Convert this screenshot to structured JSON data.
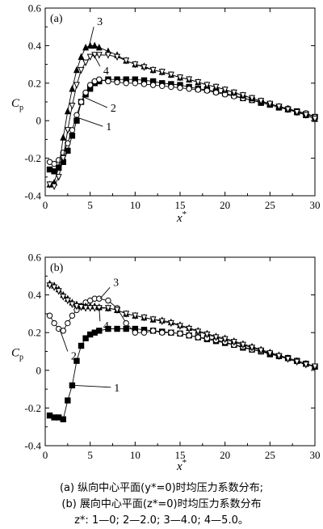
{
  "chart_data": [
    {
      "type": "line",
      "panel_label": "(a)",
      "ylabel_main": "C",
      "ylabel_sub": "p",
      "xlabel_main": "x",
      "xlabel_sup": "*",
      "xlim": [
        0,
        30
      ],
      "ylim": [
        -0.4,
        0.6
      ],
      "xticks": [
        0,
        5,
        10,
        15,
        20,
        25,
        30
      ],
      "yticks": [
        -0.4,
        -0.2,
        0,
        0.2,
        0.4,
        0.6
      ],
      "xtick_labels": [
        "0",
        "5",
        "10",
        "15",
        "20",
        "25",
        "30"
      ],
      "ytick_labels": [
        "-0.4",
        "-0.2",
        "0",
        "0.2",
        "0.4",
        "0.6"
      ],
      "series": [
        {
          "name": "1",
          "marker": "filled-square",
          "x": [
            0.5,
            1.0,
            1.5,
            2.0,
            2.5,
            3.0,
            3.5,
            4.0,
            4.5,
            5.0,
            5.5,
            6.0,
            7,
            8,
            9,
            10,
            11,
            12,
            13,
            14,
            15,
            16,
            17,
            18,
            19,
            20,
            21,
            22,
            23,
            24,
            25,
            26,
            27,
            28,
            29,
            30
          ],
          "y": [
            -0.26,
            -0.27,
            -0.25,
            -0.22,
            -0.16,
            -0.08,
            0.0,
            0.1,
            0.14,
            0.17,
            0.2,
            0.21,
            0.22,
            0.22,
            0.22,
            0.22,
            0.215,
            0.21,
            0.2,
            0.195,
            0.19,
            0.18,
            0.17,
            0.165,
            0.155,
            0.145,
            0.135,
            0.12,
            0.11,
            0.095,
            0.085,
            0.07,
            0.06,
            0.05,
            0.035,
            0.02
          ]
        },
        {
          "name": "2",
          "marker": "open-circle",
          "x": [
            0.5,
            1.0,
            1.5,
            2.0,
            2.5,
            3.0,
            3.5,
            4.0,
            4.5,
            5.0,
            5.5,
            6.0,
            7,
            8,
            9,
            10,
            11,
            12,
            13,
            14,
            15,
            16,
            17,
            18,
            19,
            20,
            21,
            22,
            23,
            24,
            25,
            26,
            27,
            28,
            29,
            30
          ],
          "y": [
            -0.22,
            -0.23,
            -0.21,
            -0.17,
            -0.12,
            -0.05,
            0.03,
            0.1,
            0.15,
            0.19,
            0.21,
            0.22,
            0.21,
            0.205,
            0.2,
            0.2,
            0.195,
            0.19,
            0.185,
            0.18,
            0.175,
            0.17,
            0.165,
            0.16,
            0.15,
            0.14,
            0.13,
            0.12,
            0.11,
            0.1,
            0.09,
            0.075,
            0.065,
            0.05,
            0.04,
            0.02
          ]
        },
        {
          "name": "3",
          "marker": "filled-triangle",
          "x": [
            0.5,
            1.0,
            1.5,
            2.0,
            2.5,
            3.0,
            3.5,
            4.0,
            4.5,
            5.0,
            5.5,
            6.0,
            7,
            8,
            9,
            10,
            11,
            12,
            13,
            14,
            15,
            16,
            17,
            18,
            19,
            20,
            21,
            22,
            23,
            24,
            25,
            26,
            27,
            28,
            29,
            30
          ],
          "y": [
            -0.34,
            -0.33,
            -0.25,
            -0.09,
            0.05,
            0.17,
            0.27,
            0.34,
            0.39,
            0.4,
            0.4,
            0.39,
            0.37,
            0.35,
            0.32,
            0.3,
            0.29,
            0.27,
            0.26,
            0.245,
            0.23,
            0.22,
            0.205,
            0.19,
            0.18,
            0.165,
            0.15,
            0.135,
            0.12,
            0.105,
            0.09,
            0.075,
            0.06,
            0.045,
            0.03,
            0.01
          ]
        },
        {
          "name": "4",
          "marker": "open-inverted-triangle",
          "x": [
            0.5,
            1.0,
            1.5,
            2.0,
            2.5,
            3.0,
            3.5,
            4.0,
            4.5,
            5.0,
            5.5,
            6.0,
            7,
            8,
            9,
            10,
            11,
            12,
            13,
            14,
            15,
            16,
            17,
            18,
            19,
            20,
            21,
            22,
            23,
            24,
            25,
            26,
            27,
            28,
            29,
            30
          ],
          "y": [
            -0.34,
            -0.35,
            -0.3,
            -0.2,
            -0.05,
            0.08,
            0.19,
            0.27,
            0.31,
            0.34,
            0.35,
            0.35,
            0.35,
            0.34,
            0.32,
            0.3,
            0.285,
            0.27,
            0.26,
            0.245,
            0.23,
            0.22,
            0.205,
            0.19,
            0.18,
            0.165,
            0.15,
            0.135,
            0.12,
            0.105,
            0.09,
            0.075,
            0.06,
            0.045,
            0.03,
            0.01
          ]
        }
      ],
      "annotations": [
        {
          "label": "1",
          "at_x": 3.4,
          "at_y": 0.02,
          "to_x": 6.4,
          "to_y": -0.03
        },
        {
          "label": "2",
          "at_x": 4.1,
          "at_y": 0.13,
          "to_x": 6.9,
          "to_y": 0.07
        },
        {
          "label": "3",
          "at_x": 4.9,
          "at_y": 0.4,
          "to_x": 5.4,
          "to_y": 0.5
        },
        {
          "label": "4",
          "at_x": 5.4,
          "at_y": 0.35,
          "to_x": 6.1,
          "to_y": 0.29
        }
      ]
    },
    {
      "type": "line",
      "panel_label": "(b)",
      "ylabel_main": "C",
      "ylabel_sub": "p",
      "xlabel_main": "x",
      "xlabel_sup": "*",
      "xlim": [
        0,
        30
      ],
      "ylim": [
        -0.4,
        0.6
      ],
      "xticks": [
        0,
        5,
        10,
        15,
        20,
        25,
        30
      ],
      "yticks": [
        -0.4,
        -0.2,
        0,
        0.2,
        0.4,
        0.6
      ],
      "xtick_labels": [
        "0",
        "5",
        "10",
        "15",
        "20",
        "25",
        "30"
      ],
      "ytick_labels": [
        "-0.4",
        "-0.2",
        "0",
        "0.2",
        "0.4",
        "0.6"
      ],
      "series": [
        {
          "name": "1",
          "marker": "filled-square",
          "x": [
            0.5,
            1.0,
            1.5,
            2.0,
            2.5,
            3.0,
            3.5,
            4.0,
            4.5,
            5.0,
            5.5,
            6.0,
            7,
            8,
            9,
            10,
            11,
            12,
            13,
            14,
            15,
            16,
            17,
            18,
            19,
            20,
            21,
            22,
            23,
            24,
            25,
            26,
            27,
            28,
            29,
            30
          ],
          "y": [
            -0.24,
            -0.25,
            -0.25,
            -0.26,
            -0.16,
            -0.08,
            0.05,
            0.13,
            0.17,
            0.19,
            0.2,
            0.21,
            0.22,
            0.22,
            0.22,
            0.22,
            0.215,
            0.21,
            0.205,
            0.2,
            0.195,
            0.185,
            0.175,
            0.165,
            0.155,
            0.145,
            0.135,
            0.12,
            0.11,
            0.1,
            0.085,
            0.075,
            0.065,
            0.05,
            0.035,
            0.02
          ]
        },
        {
          "name": "2",
          "marker": "open-circle",
          "x": [
            0.5,
            1.0,
            1.5,
            2.0,
            2.5,
            3.0,
            3.5,
            4.0,
            4.5,
            5.0,
            5.5,
            6.0,
            7,
            8,
            9,
            10,
            11,
            12,
            13,
            14,
            15,
            16,
            17,
            18,
            19,
            20,
            21,
            22,
            23,
            24,
            25,
            26,
            27,
            28,
            29,
            30
          ],
          "y": [
            0.29,
            0.25,
            0.22,
            0.21,
            0.25,
            0.29,
            0.32,
            0.34,
            0.36,
            0.37,
            0.38,
            0.38,
            0.37,
            0.33,
            0.25,
            0.2,
            0.2,
            0.21,
            0.2,
            0.2,
            0.195,
            0.185,
            0.175,
            0.17,
            0.16,
            0.15,
            0.135,
            0.125,
            0.11,
            0.1,
            0.09,
            0.075,
            0.065,
            0.05,
            0.035,
            0.02
          ]
        },
        {
          "name": "3",
          "marker": "filled-triangle",
          "x": [
            0.5,
            1.0,
            1.5,
            2.0,
            2.5,
            3.0,
            3.5,
            4.0,
            4.5,
            5.0,
            5.5,
            6.0,
            7,
            8,
            9,
            10,
            11,
            12,
            13,
            14,
            15,
            16,
            17,
            18,
            19,
            20,
            21,
            22,
            23,
            24,
            25,
            26,
            27,
            28,
            29,
            30
          ],
          "y": [
            0.46,
            0.45,
            0.43,
            0.4,
            0.38,
            0.36,
            0.35,
            0.34,
            0.34,
            0.34,
            0.34,
            0.335,
            0.33,
            0.32,
            0.3,
            0.29,
            0.28,
            0.27,
            0.265,
            0.255,
            0.24,
            0.225,
            0.21,
            0.195,
            0.18,
            0.17,
            0.155,
            0.14,
            0.125,
            0.11,
            0.095,
            0.08,
            0.065,
            0.05,
            0.035,
            0.02
          ]
        },
        {
          "name": "4",
          "marker": "open-inverted-triangle",
          "x": [
            0.5,
            1.0,
            1.5,
            2.0,
            2.5,
            3.0,
            3.5,
            4.0,
            4.5,
            5.0,
            5.5,
            6.0,
            7,
            8,
            9,
            10,
            11,
            12,
            13,
            14,
            15,
            16,
            17,
            18,
            19,
            20,
            21,
            22,
            23,
            24,
            25,
            26,
            27,
            28,
            29,
            30
          ],
          "y": [
            0.45,
            0.44,
            0.42,
            0.39,
            0.37,
            0.35,
            0.34,
            0.335,
            0.33,
            0.33,
            0.33,
            0.33,
            0.33,
            0.32,
            0.3,
            0.29,
            0.28,
            0.27,
            0.26,
            0.25,
            0.235,
            0.22,
            0.205,
            0.19,
            0.175,
            0.165,
            0.15,
            0.135,
            0.12,
            0.105,
            0.09,
            0.075,
            0.06,
            0.045,
            0.03,
            0.02
          ]
        }
      ],
      "annotations": [
        {
          "label": "1",
          "at_x": 3.2,
          "at_y": -0.08,
          "to_x": 7.3,
          "to_y": -0.09
        },
        {
          "label": "2",
          "at_x": 1.6,
          "at_y": 0.22,
          "to_x": 2.5,
          "to_y": 0.1
        },
        {
          "label": "3",
          "at_x": 6.1,
          "at_y": 0.38,
          "to_x": 7.2,
          "to_y": 0.44
        },
        {
          "label": "4",
          "at_x": 6.0,
          "at_y": 0.33,
          "to_x": 6.1,
          "to_y": 0.26
        }
      ]
    }
  ],
  "caption": {
    "line1": "(a)  纵向中心平面(y*=0)时均压力系数分布;",
    "line2": "(b)  展向中心平面(z*=0)时均压力系数分布",
    "line3": "z*: 1—0; 2—2.0; 3—4.0; 4—5.0。"
  }
}
